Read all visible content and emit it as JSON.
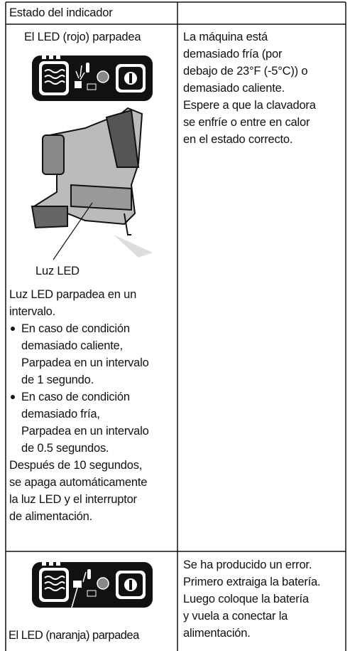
{
  "table": {
    "header": "Estado del indicador",
    "rows": [
      {
        "indicator_label": "El LED (rojo) parpadea",
        "callout": "Luz LED",
        "intro": [
          "Luz LED parpadea en un",
          "intervalo."
        ],
        "bullets": [
          [
            "En caso de condición",
            "demasiado caliente,",
            "Parpadea en un intervalo",
            "de 1 segundo."
          ],
          [
            "En caso de condición",
            "demasiado fría,",
            "Parpadea en un intervalo",
            "de 0.5 segundos."
          ]
        ],
        "closing": [
          "Después de 10 segundos,",
          "se apaga automáticamente",
          "la luz LED y el interruptor",
          "de alimentación."
        ],
        "description": [
          "La máquina está",
          "demasiado fría (por",
          "debajo de 23°F (-5°C)) o",
          "demasiado caliente.",
          "Espere a que la clavadora",
          "se enfríe o entre en calor",
          "en el estado correcto."
        ]
      },
      {
        "indicator_label": "El LED (naranja) parpadea",
        "description": [
          "Se ha producido un error.",
          "Primero extraiga la batería.",
          "Luego coloque la batería",
          "y vuela a conectar la",
          "alimentación."
        ]
      }
    ]
  }
}
